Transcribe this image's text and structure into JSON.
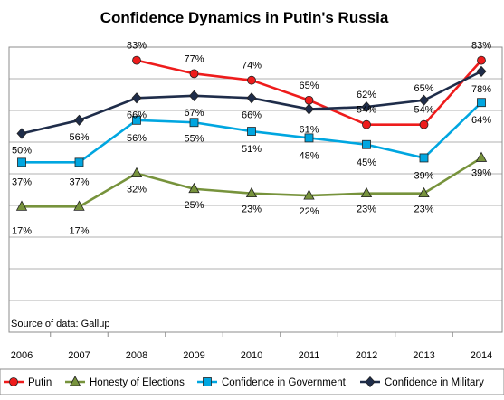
{
  "chart_data": {
    "type": "line",
    "title": "Confidence Dynamics in Putin's Russia",
    "source_note": "Source of data: Gallup",
    "x": [
      "2006",
      "2007",
      "2008",
      "2009",
      "2010",
      "2011",
      "2012",
      "2013",
      "2014"
    ],
    "ylim": [
      0,
      100
    ],
    "grid": true,
    "legend_position": "bottom",
    "series": [
      {
        "name": "Putin",
        "color": "#ee1c1c",
        "marker": "circle",
        "values": [
          null,
          null,
          83,
          77,
          74,
          65,
          54,
          54,
          83
        ],
        "labels": [
          "",
          "",
          "83%",
          "77%",
          "74%",
          "65%",
          "54%",
          "54%",
          "83%"
        ]
      },
      {
        "name": "Honesty of Elections",
        "color": "#77933c",
        "marker": "triangle",
        "values": [
          17,
          17,
          32,
          25,
          23,
          22,
          23,
          23,
          39
        ],
        "labels": [
          "17%",
          "17%",
          "32%",
          "25%",
          "23%",
          "22%",
          "23%",
          "23%",
          "39%"
        ]
      },
      {
        "name": "Confidence in Government",
        "color": "#00a6e0",
        "marker": "square",
        "values": [
          37,
          37,
          56,
          55,
          51,
          48,
          45,
          39,
          64
        ],
        "labels": [
          "37%",
          "37%",
          "56%",
          "55%",
          "51%",
          "48%",
          "45%",
          "39%",
          "64%"
        ]
      },
      {
        "name": "Confidence in Military",
        "color": "#1f2d4a",
        "marker": "diamond",
        "values": [
          50,
          56,
          66,
          67,
          66,
          61,
          62,
          65,
          78
        ],
        "labels": [
          "50%",
          "56%",
          "66%",
          "67%",
          "66%",
          "61%",
          "62%",
          "65%",
          "78%"
        ]
      }
    ]
  }
}
